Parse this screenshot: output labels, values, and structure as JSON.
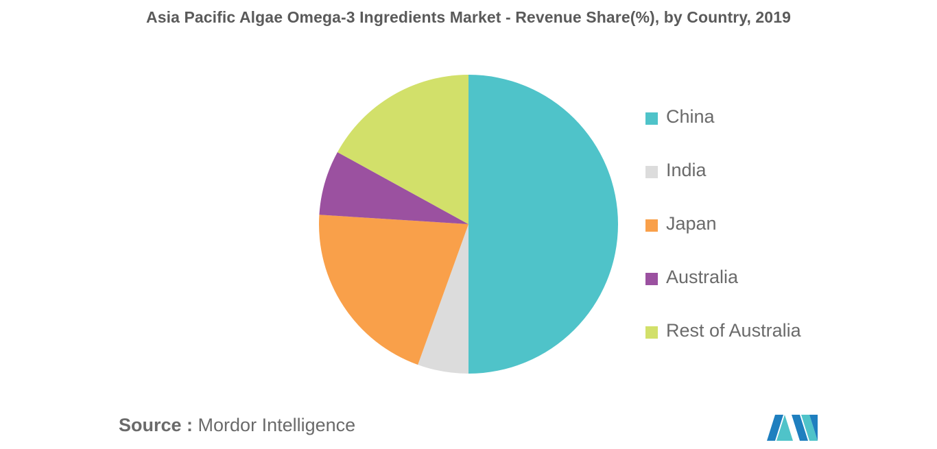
{
  "chart_data": {
    "type": "pie",
    "title": "Asia Pacific Algae Omega-3 Ingredients Market - Revenue Share(%), by Country, 2019",
    "categories": [
      "China",
      "India",
      "Japan",
      "Australia",
      "Rest of Australia"
    ],
    "values": [
      50,
      5.5,
      20.5,
      7,
      17
    ],
    "colors": [
      "#4fc3c9",
      "#dcdcdc",
      "#f9a04a",
      "#9b51a0",
      "#d2e06a"
    ],
    "legend_position": "right",
    "start_angle": "12 o'clock",
    "direction": "clockwise"
  },
  "source": {
    "key": "Source :",
    "value": "Mordor Intelligence"
  },
  "logo": {
    "icon": "mordor-intelligence-logo",
    "colors": [
      "#1f7fbf",
      "#4fc3c9"
    ]
  }
}
